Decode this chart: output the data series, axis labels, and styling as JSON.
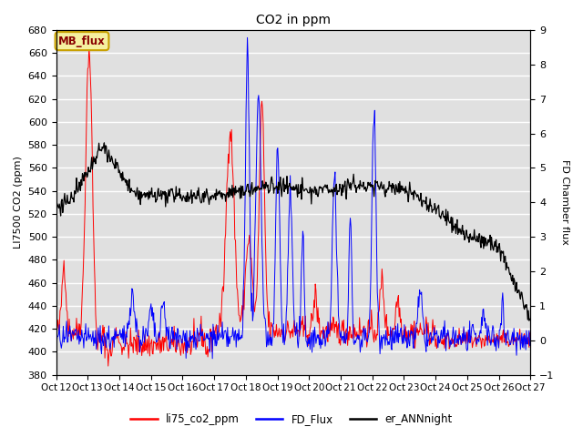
{
  "title": "CO2 in ppm",
  "ylabel_left": "LI7500 CO2 (ppm)",
  "ylabel_right": "FD Chamber flux",
  "ylim_left": [
    380,
    680
  ],
  "ylim_right": [
    -1.0,
    9.0
  ],
  "yticks_left": [
    380,
    400,
    420,
    440,
    460,
    480,
    500,
    520,
    540,
    560,
    580,
    600,
    620,
    640,
    660,
    680
  ],
  "yticks_right": [
    -1.0,
    0.0,
    1.0,
    2.0,
    3.0,
    4.0,
    5.0,
    6.0,
    7.0,
    8.0,
    9.0
  ],
  "xtick_labels": [
    "Oct 12",
    "Oct 13",
    "Oct 14",
    "Oct 15",
    "Oct 16",
    "Oct 17",
    "Oct 18",
    "Oct 19",
    "Oct 20",
    "Oct 21",
    "Oct 22",
    "Oct 23",
    "Oct 24",
    "Oct 25",
    "Oct 26",
    "Oct 27"
  ],
  "bg_color": "#e0e0e0",
  "grid_color": "#ffffff",
  "legend_box_text": "MB_flux",
  "legend_box_facecolor": "#f5f0a0",
  "legend_box_edgecolor": "#c8a000",
  "line_red": "#ff0000",
  "line_blue": "#0000ff",
  "line_black": "#000000",
  "legend_labels": [
    "li75_co2_ppm",
    "FD_Flux",
    "er_ANNnight"
  ],
  "legend_colors": [
    "#ff0000",
    "#0000ff",
    "#000000"
  ],
  "n_days": 15,
  "pts_per_day": 48,
  "seed": 42
}
